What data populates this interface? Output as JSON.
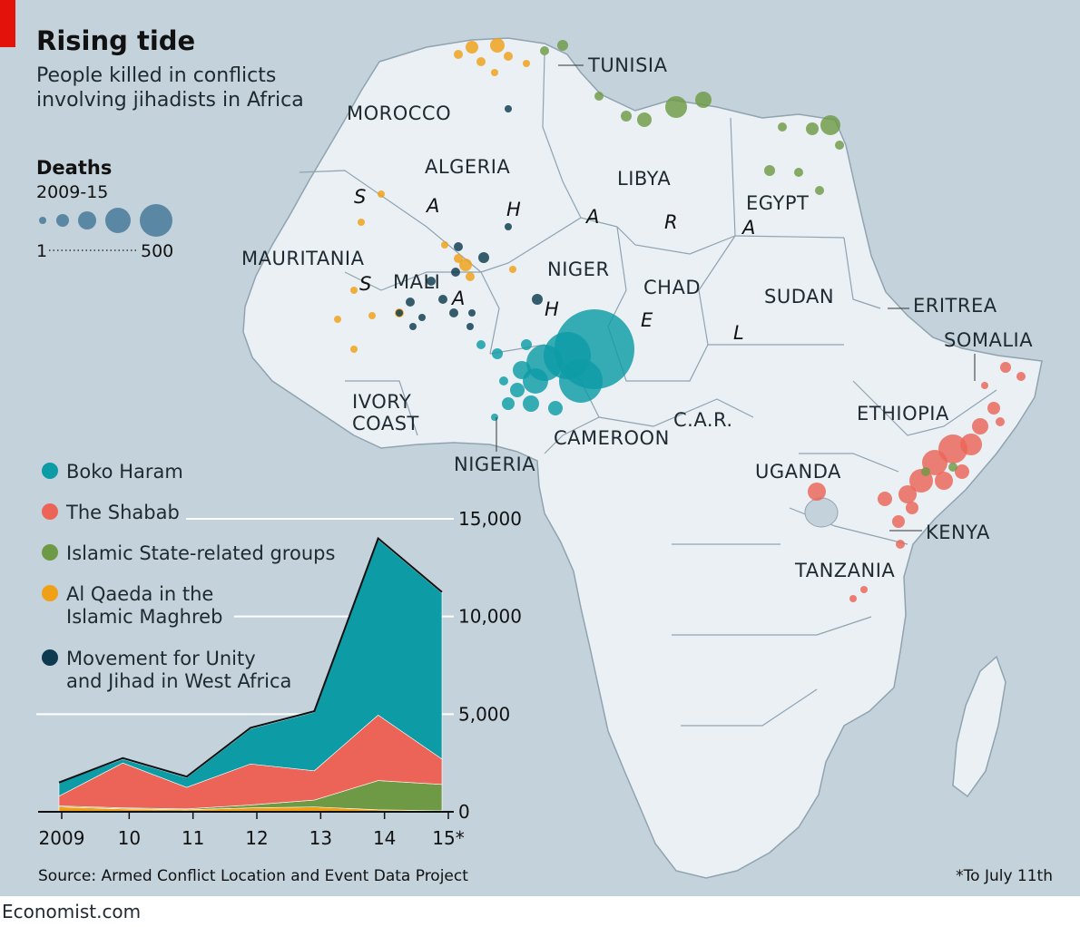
{
  "title": "Rising tide",
  "subtitle_lines": [
    "People killed in conflicts",
    "involving jihadists in Africa"
  ],
  "size_legend": {
    "title": "Deaths",
    "period": "2009-15",
    "min_label": "1",
    "max_label": "500"
  },
  "map_labels": {
    "countries": [
      "MOROCCO",
      "ALGERIA",
      "TUNISIA",
      "LIBYA",
      "EGYPT",
      "MAURITANIA",
      "MALI",
      "NIGER",
      "CHAD",
      "SUDAN",
      "ERITREA",
      "SOMALIA",
      "ETHIOPIA",
      "IVORY",
      "COAST",
      "NIGERIA",
      "CAMEROON",
      "C.A.R.",
      "UGANDA",
      "KENYA",
      "TANZANIA"
    ],
    "sahel_letters": [
      "S",
      "A",
      "H",
      "A",
      "R",
      "A",
      "S",
      "A",
      "H",
      "E",
      "L"
    ]
  },
  "colors": {
    "boko_haram": "#0d9ba6",
    "shabab": "#ec6458",
    "islamic_state": "#6f9a45",
    "aqim": "#f0a016",
    "mujao": "#0d3a4e",
    "ocean": "#c4d2db",
    "land": "#eaf0f4",
    "border": "#8fa3b0",
    "accent": "#e3120b"
  },
  "chart_data": {
    "type": "area",
    "stacked": true,
    "x": [
      "2009",
      "10",
      "11",
      "12",
      "13",
      "14",
      "15*"
    ],
    "series": [
      {
        "name": "Al Qaeda in the Islamic Maghreb",
        "color": "#f0a016",
        "values": [
          250,
          150,
          100,
          200,
          250,
          100,
          50
        ]
      },
      {
        "name": "Islamic State-related groups",
        "color": "#6f9a45",
        "values": [
          50,
          50,
          50,
          150,
          350,
          1500,
          1350
        ]
      },
      {
        "name": "The Shabab",
        "color": "#ec6458",
        "values": [
          500,
          2300,
          1100,
          2100,
          1500,
          3350,
          1300
        ]
      },
      {
        "name": "Boko Haram",
        "color": "#0d9ba6",
        "values": [
          700,
          200,
          500,
          1800,
          3000,
          9000,
          8500
        ]
      },
      {
        "name": "Movement for Unity and Jihad in West Africa",
        "color": "#0d3a4e",
        "values": [
          0,
          50,
          50,
          50,
          50,
          50,
          50
        ]
      }
    ],
    "legend_lines": [
      [
        "Boko Haram"
      ],
      [
        "The Shabab"
      ],
      [
        "Islamic State-related groups"
      ],
      [
        "Al Qaeda in the",
        "Islamic Maghreb"
      ],
      [
        "Movement for Unity",
        "and Jihad in West Africa"
      ]
    ],
    "legend_colors": [
      "#0d9ba6",
      "#ec6458",
      "#6f9a45",
      "#f0a016",
      "#0d3a4e"
    ],
    "yticks": [
      0,
      5000,
      10000,
      15000
    ],
    "ytick_labels": [
      "0",
      "5,000",
      "10,000",
      "15,000"
    ],
    "ylim": [
      0,
      15000
    ],
    "xlabel": "",
    "ylabel": ""
  },
  "footnote": "*To July 11th",
  "source": "Source: Armed Conflict Location and Event Data Project",
  "brand": "Economist.com"
}
